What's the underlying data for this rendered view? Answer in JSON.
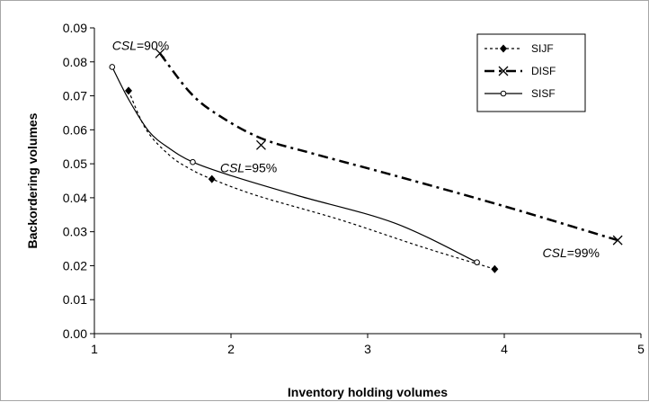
{
  "chart_data": {
    "type": "line",
    "xlabel": "Inventory holding volumes",
    "ylabel": "Backordering volumes",
    "xlim": [
      1,
      5
    ],
    "ylim": [
      0,
      0.09
    ],
    "xticks": [
      "1",
      "2",
      "3",
      "4",
      "5"
    ],
    "yticks": [
      "0.00",
      "0.01",
      "0.02",
      "0.03",
      "0.04",
      "0.05",
      "0.06",
      "0.07",
      "0.08",
      "0.09"
    ],
    "grid": false,
    "legend_position": "top-right",
    "series": [
      {
        "name": "SIJF",
        "style": "dotted",
        "marker": "diamond",
        "color": "#000000",
        "markers": [
          [
            1.25,
            0.0715
          ],
          [
            1.86,
            0.0455
          ],
          [
            3.93,
            0.019
          ]
        ],
        "curve": [
          [
            1.25,
            0.0715
          ],
          [
            1.38,
            0.06
          ],
          [
            1.55,
            0.0525
          ],
          [
            1.7,
            0.0485
          ],
          [
            1.86,
            0.0455
          ],
          [
            2.2,
            0.0405
          ],
          [
            2.8,
            0.0335
          ],
          [
            3.4,
            0.0255
          ],
          [
            3.93,
            0.019
          ]
        ]
      },
      {
        "name": "DISF",
        "style": "dash-dot",
        "marker": "x",
        "color": "#000000",
        "markers": [
          [
            1.48,
            0.0825
          ],
          [
            2.22,
            0.0555
          ],
          [
            4.83,
            0.0275
          ]
        ],
        "curve": [
          [
            1.48,
            0.0825
          ],
          [
            1.7,
            0.071
          ],
          [
            1.9,
            0.0645
          ],
          [
            2.22,
            0.0575
          ],
          [
            2.6,
            0.053
          ],
          [
            3.2,
            0.0465
          ],
          [
            4.0,
            0.0375
          ],
          [
            4.83,
            0.0275
          ]
        ]
      },
      {
        "name": "SISF",
        "style": "solid",
        "marker": "circle",
        "color": "#000000",
        "markers": [
          [
            1.13,
            0.0785
          ],
          [
            1.72,
            0.0505
          ],
          [
            3.8,
            0.021
          ]
        ],
        "curve": [
          [
            1.13,
            0.0785
          ],
          [
            1.25,
            0.069
          ],
          [
            1.4,
            0.0595
          ],
          [
            1.55,
            0.0545
          ],
          [
            1.72,
            0.0505
          ],
          [
            2.0,
            0.0465
          ],
          [
            2.5,
            0.0405
          ],
          [
            3.2,
            0.0325
          ],
          [
            3.8,
            0.021
          ]
        ]
      }
    ],
    "annotations": [
      {
        "label": "CSL",
        "value": "=90%",
        "x": 1.13,
        "y": 0.0835
      },
      {
        "label": "CSL",
        "value": "=95%",
        "x": 1.92,
        "y": 0.0475
      },
      {
        "label": "CSL",
        "value": "=99%",
        "x": 4.28,
        "y": 0.0225
      }
    ]
  }
}
